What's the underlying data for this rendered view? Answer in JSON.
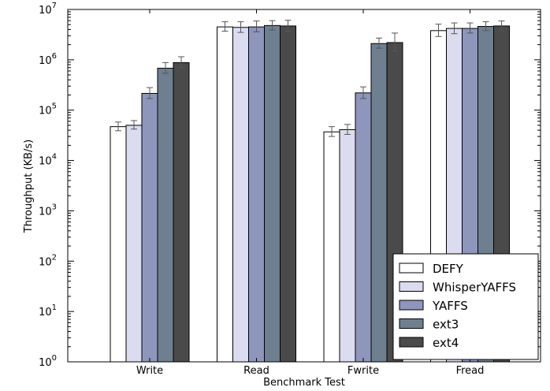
{
  "chart_data": {
    "type": "bar",
    "title": "",
    "xlabel": "Benchmark Test",
    "ylabel": "Throughput (KB/s)",
    "yscale": "log",
    "ylim": [
      1,
      10000000
    ],
    "yticks": [
      {
        "value": 1,
        "base": "10",
        "exp": "0"
      },
      {
        "value": 10,
        "base": "10",
        "exp": "1"
      },
      {
        "value": 100,
        "base": "10",
        "exp": "2"
      },
      {
        "value": 1000,
        "base": "10",
        "exp": "3"
      },
      {
        "value": 10000,
        "base": "10",
        "exp": "4"
      },
      {
        "value": 100000,
        "base": "10",
        "exp": "5"
      },
      {
        "value": 1000000,
        "base": "10",
        "exp": "6"
      },
      {
        "value": 10000000,
        "base": "10",
        "exp": "7"
      }
    ],
    "categories": [
      "Write",
      "Read",
      "Fwrite",
      "Fread"
    ],
    "series": [
      {
        "name": "DEFY",
        "color": "#ffffff",
        "values": [
          47000,
          4500000,
          37000,
          3800000
        ],
        "err_low": [
          39000,
          3700000,
          30000,
          2900000
        ],
        "err_high": [
          58000,
          5700000,
          47000,
          5100000
        ]
      },
      {
        "name": "WhisperYAFFS",
        "color": "#dcdcf0",
        "values": [
          50000,
          4400000,
          41000,
          4200000
        ],
        "err_low": [
          42000,
          3500000,
          33000,
          3300000
        ],
        "err_high": [
          62000,
          5700000,
          52000,
          5400000
        ]
      },
      {
        "name": "YAFFS",
        "color": "#8e96bc",
        "values": [
          215000,
          4500000,
          220000,
          4200000
        ],
        "err_low": [
          170000,
          3600000,
          170000,
          3400000
        ],
        "err_high": [
          280000,
          5900000,
          290000,
          5400000
        ]
      },
      {
        "name": "ext3",
        "color": "#6e8090",
        "values": [
          680000,
          4800000,
          2100000,
          4600000
        ],
        "err_low": [
          540000,
          3900000,
          1700000,
          3800000
        ],
        "err_high": [
          880000,
          6000000,
          2700000,
          5700000
        ]
      },
      {
        "name": "ext4",
        "color": "#4a4a4a",
        "values": [
          880000,
          4700000,
          2200000,
          4700000
        ],
        "err_low": [
          700000,
          3700000,
          1500000,
          3800000
        ],
        "err_high": [
          1150000,
          6100000,
          3400000,
          5900000
        ]
      }
    ],
    "legend_position": "bottom-right",
    "grid": false
  }
}
